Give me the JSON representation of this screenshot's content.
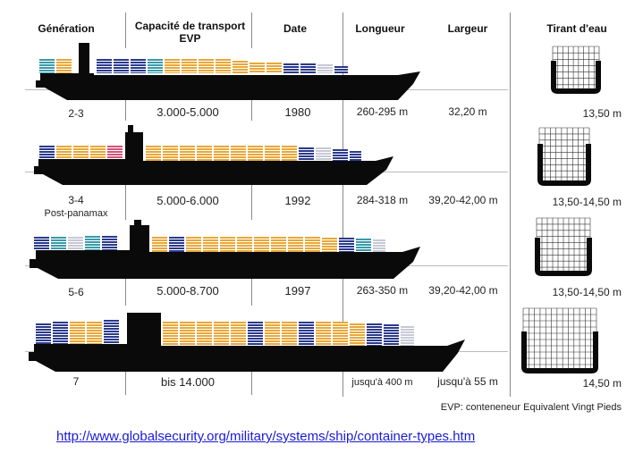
{
  "headers": {
    "generation": "Génération",
    "capacity": "Capacité de transport\nEVP",
    "date": "Date",
    "length": "Longueur",
    "width": "Largeur",
    "draft": "Tirant d'eau"
  },
  "rows": [
    {
      "generation": "2-3",
      "sub": "",
      "capacity": "3.000-5.000",
      "date": "1980",
      "length": "260-295 m",
      "width": "32,20 m",
      "draft": "13,50 m"
    },
    {
      "generation": "3-4",
      "sub": "Post-panamax",
      "capacity": "5.000-6.000",
      "date": "1992",
      "length": "284-318 m",
      "width": "39,20-42,00 m",
      "draft": "13,50-14,50 m"
    },
    {
      "generation": "5-6",
      "sub": "",
      "capacity": "5.000-8.700",
      "date": "1997",
      "length": "263-350 m",
      "width": "39,20-42,00 m",
      "draft": "13,50-14,50 m"
    },
    {
      "generation": "7",
      "sub": "",
      "capacity": "bis 14.000",
      "date": "",
      "length": "jusqu'à 400 m",
      "width": "jusqu'à 55 m",
      "draft": "14,50 m"
    }
  ],
  "footnote": "EVP: conteneneur Equivalent Vingt Pieds",
  "source_link": "http://www.globalsecurity.org/military/systems/ship/container-types.htm",
  "colors": {
    "hull": "#0a0a0a",
    "container_orange": "#e8a838",
    "container_navy": "#2b3a8c",
    "container_teal": "#3a9aa8",
    "container_pink": "#d4537a",
    "container_gray": "#c7c9d6",
    "link": "#1a1ad6"
  }
}
